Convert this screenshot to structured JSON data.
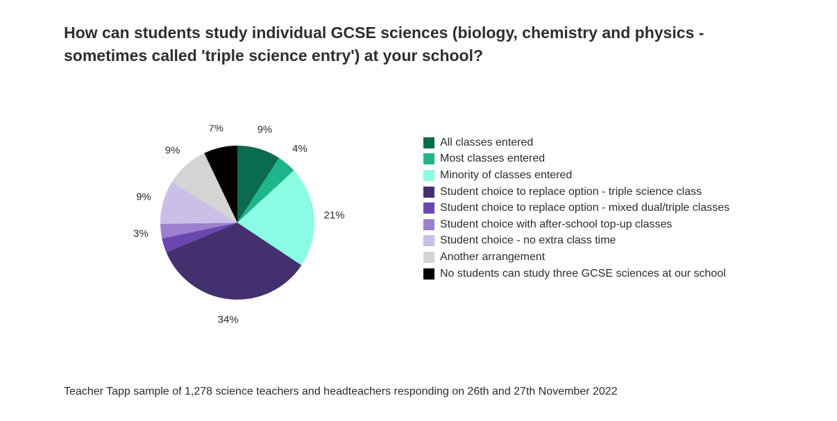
{
  "title_lines": [
    "How can students study individual GCSE sciences (biology, chemistry and physics -",
    "sometimes called 'triple science entry') at your school?"
  ],
  "source": "Teacher Tapp sample of 1,278 science teachers and headteachers responding on 26th and 27th November 2022",
  "chart_data": {
    "type": "pie",
    "title": "How can students study individual GCSE sciences (biology, chemistry and physics - sometimes called 'triple science entry') at your school?",
    "start": "12 o'clock, clockwise",
    "legend_position": "right",
    "slices": [
      {
        "label": "All classes entered",
        "value": 9,
        "value_label": "9%",
        "color": "#0b6b4e",
        "show_label": true
      },
      {
        "label": "Most classes entered",
        "value": 4,
        "value_label": "4%",
        "color": "#1fb58b",
        "show_label": true
      },
      {
        "label": "Minority of classes entered",
        "value": 21,
        "value_label": "21%",
        "color": "#8cfbe3",
        "show_label": true
      },
      {
        "label": "Student choice to replace option - triple science class",
        "value": 34,
        "value_label": "34%",
        "color": "#43306f",
        "show_label": true
      },
      {
        "label": "Student choice to replace option - mixed dual/triple classes",
        "value": 3,
        "value_label": "",
        "color": "#6b46b0",
        "show_label": false
      },
      {
        "label": "Student choice with after-school top-up classes",
        "value": 3,
        "value_label": "3%",
        "color": "#9b80cf",
        "show_label": true
      },
      {
        "label": "Student choice - no extra class time",
        "value": 9,
        "value_label": "9%",
        "color": "#cbbfe8",
        "show_label": true
      },
      {
        "label": "Another arrangement",
        "value": 9,
        "value_label": "9%",
        "color": "#d4d4d4",
        "show_label": true
      },
      {
        "label": "No students can study three GCSE sciences at our school",
        "value": 7,
        "value_label": "7%",
        "color": "#000000",
        "show_label": true
      }
    ]
  }
}
